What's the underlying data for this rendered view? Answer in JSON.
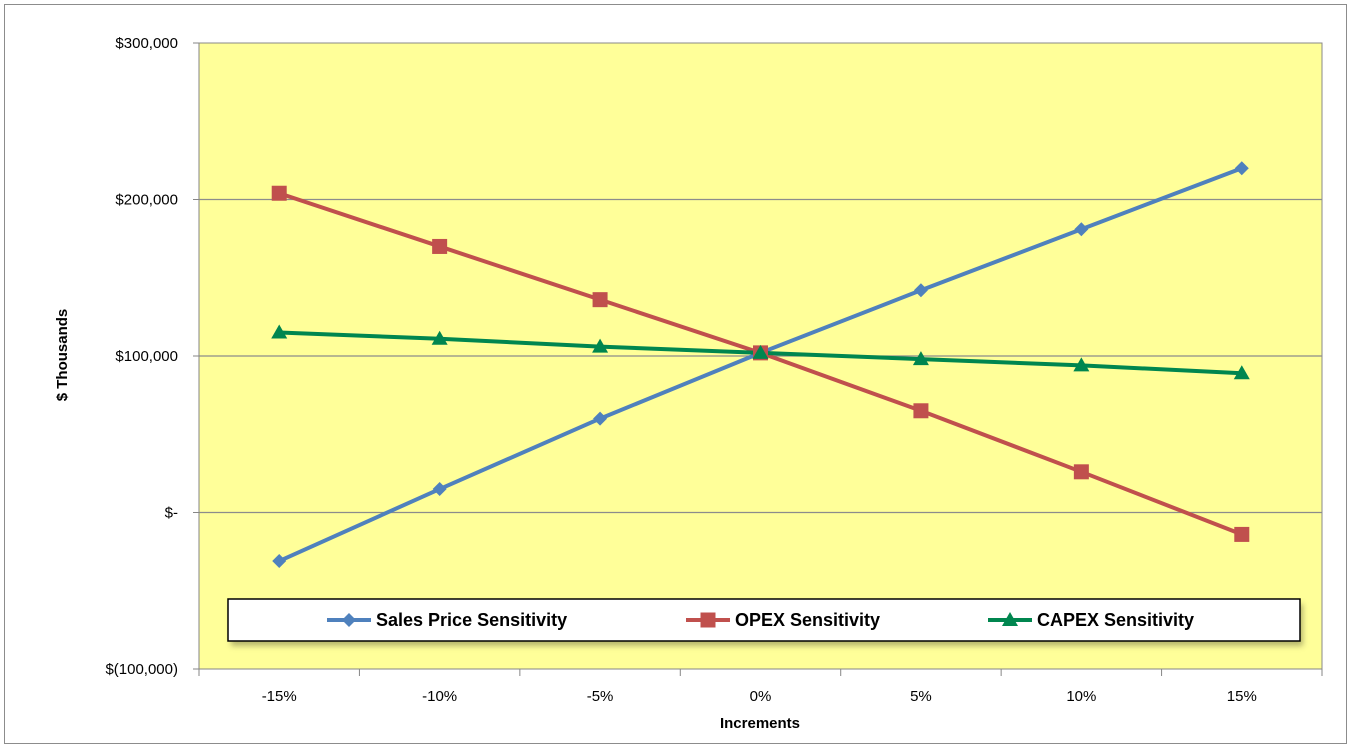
{
  "chart_data": {
    "type": "line",
    "title": "",
    "xlabel": "Increments",
    "ylabel": "$ Thousands",
    "categories": [
      "-15%",
      "-10%",
      "-5%",
      "0%",
      "5%",
      "10%",
      "15%"
    ],
    "ylim": [
      -100000,
      300000
    ],
    "yticks": [
      -100000,
      0,
      100000,
      200000,
      300000
    ],
    "ytick_labels": [
      "$(100,000)",
      "$-",
      "$100,000",
      "$200,000",
      "$300,000"
    ],
    "grid": true,
    "legend_position": "bottom",
    "plot_background": "#ffff99",
    "series": [
      {
        "name": "Sales Price Sensitivity",
        "color": "#4f81bd",
        "marker": "diamond",
        "values": [
          -31000,
          15000,
          60000,
          102000,
          142000,
          181000,
          220000
        ]
      },
      {
        "name": "OPEX Sensitivity",
        "color": "#c0504d",
        "marker": "square",
        "values": [
          204000,
          170000,
          136000,
          102000,
          65000,
          26000,
          -14000
        ]
      },
      {
        "name": "CAPEX Sensitivity",
        "color": "#00864f",
        "marker": "triangle",
        "values": [
          115000,
          111000,
          106000,
          102000,
          98000,
          94000,
          89000
        ]
      }
    ]
  }
}
